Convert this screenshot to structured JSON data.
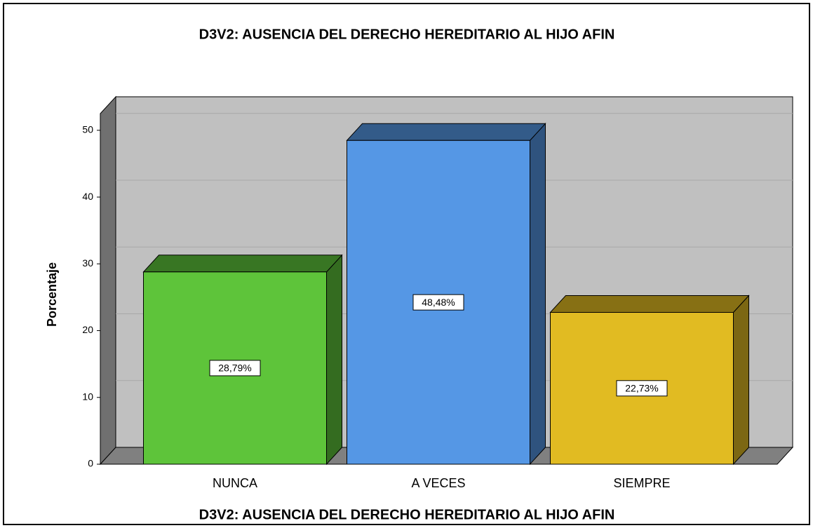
{
  "chart_data": {
    "type": "bar3d",
    "title": "D3V2: AUSENCIA DEL DERECHO HEREDITARIO AL HIJO AFIN",
    "x_label": "D3V2: AUSENCIA DEL DERECHO HEREDITARIO AL HIJO AFIN",
    "y_label": "Porcentaje",
    "categories": [
      "NUNCA",
      "A VECES",
      "SIEMPRE"
    ],
    "values": [
      28.79,
      48.48,
      22.73
    ],
    "value_labels": [
      "28,79%",
      "48,48%",
      "22,73%"
    ],
    "colors": [
      "#5ec43a",
      "#5597e5",
      "#e1bb22"
    ],
    "ylim": [
      0,
      52.5
    ],
    "yticks": [
      0,
      10,
      20,
      30,
      40,
      50
    ],
    "grid": true
  }
}
